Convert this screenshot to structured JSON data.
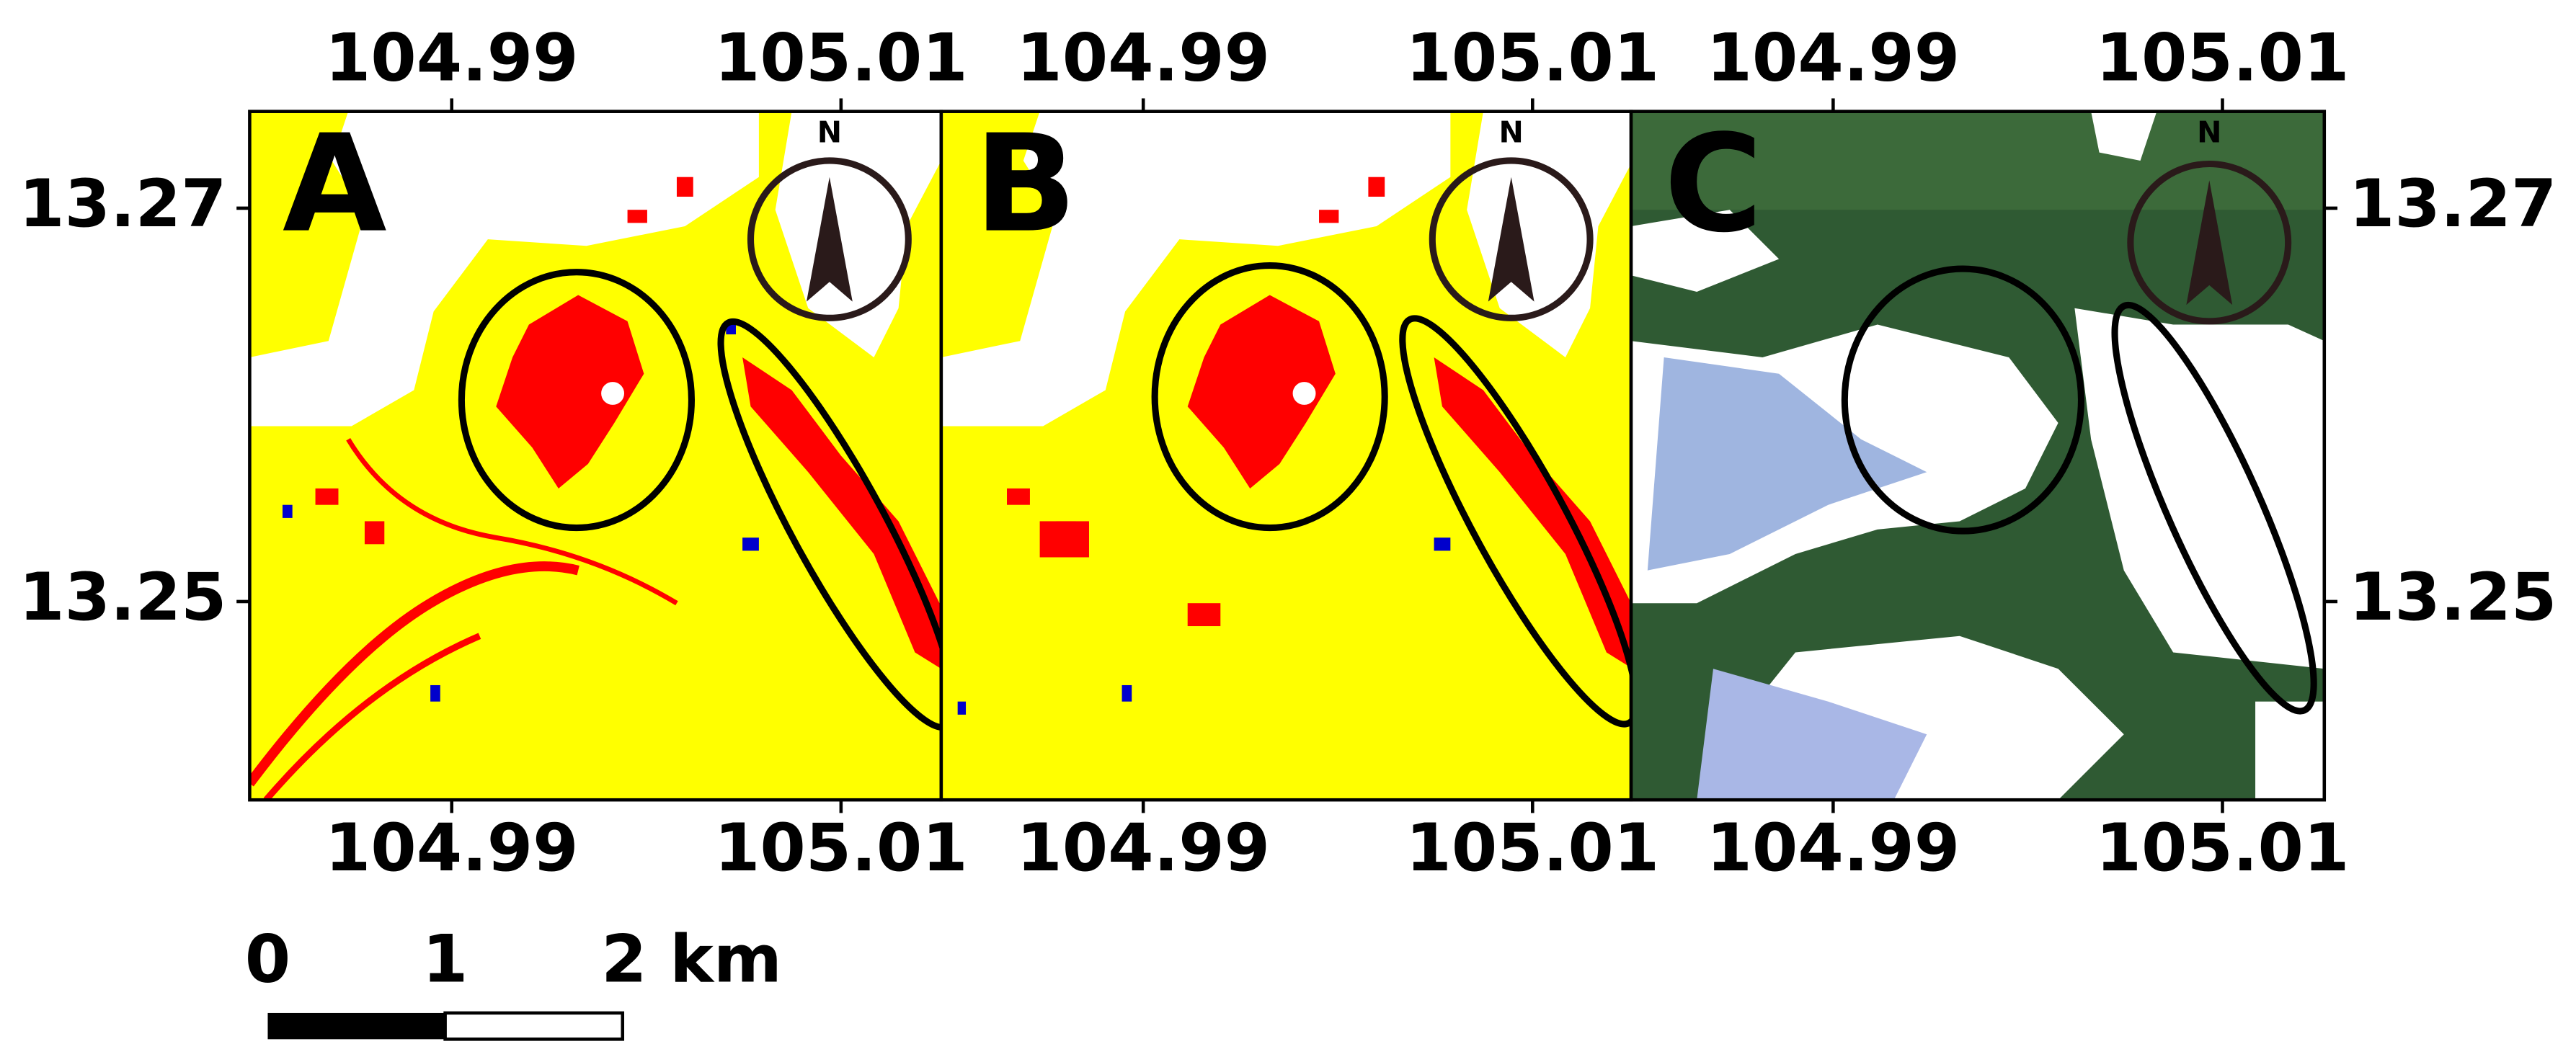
{
  "panels": [
    {
      "label": "A"
    },
    {
      "label": "B"
    },
    {
      "label": "C"
    }
  ],
  "ticks": {
    "x": [
      "104.99",
      "105.01"
    ],
    "y": [
      "13.27",
      "13.25"
    ]
  },
  "north": "N",
  "scale_bar": {
    "labels": [
      "0",
      "1",
      "2 km"
    ]
  }
}
